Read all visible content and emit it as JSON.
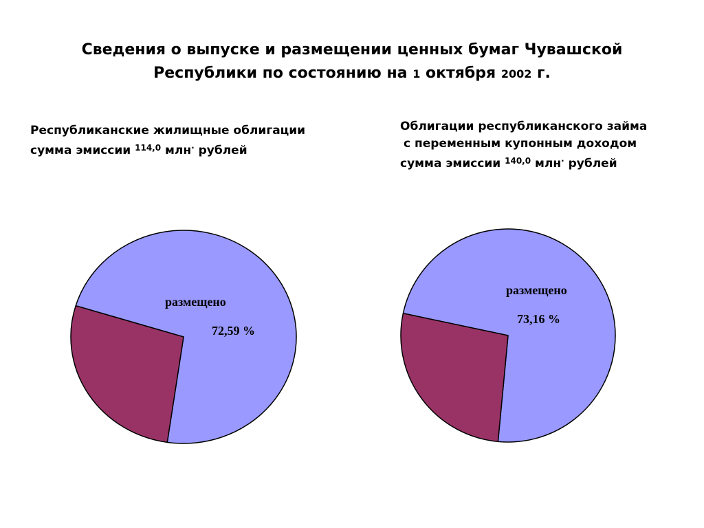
{
  "title": {
    "part1": "Сведения о выпуске и размещении ценных бумаг Чувашской",
    "part2": "Республики по состоянию на ",
    "day": "1",
    "month": " октября ",
    "year": "2002",
    "suffix": " г."
  },
  "colors": {
    "placed": "#9999ff",
    "remaining": "#993366",
    "outline": "#000000"
  },
  "chart_data": [
    {
      "type": "pie",
      "title_lines": [
        "Республиканские жилищные облигации"
      ],
      "emission_prefix": "сумма эмиссии ",
      "emission_amount": "114,0",
      "emission_unit": " млн",
      "emission_dot": "·",
      "emission_currency": " рублей",
      "slices": [
        {
          "label": "размещено",
          "value": 72.59,
          "value_label": "72,59 %",
          "color": "#9999ff"
        },
        {
          "label": "",
          "value": 27.41,
          "color": "#993366"
        }
      ]
    },
    {
      "type": "pie",
      "title_lines": [
        "Облигации республиканского займа",
        "с переменным купонным доходом"
      ],
      "emission_prefix": "сумма эмиссии ",
      "emission_amount": "140,0",
      "emission_unit": " млн",
      "emission_dot": "·",
      "emission_currency": " рублей",
      "slices": [
        {
          "label": "размещено",
          "value": 73.16,
          "value_label": "73,16 %",
          "color": "#9999ff"
        },
        {
          "label": "",
          "value": 26.84,
          "color": "#993366"
        }
      ]
    }
  ]
}
